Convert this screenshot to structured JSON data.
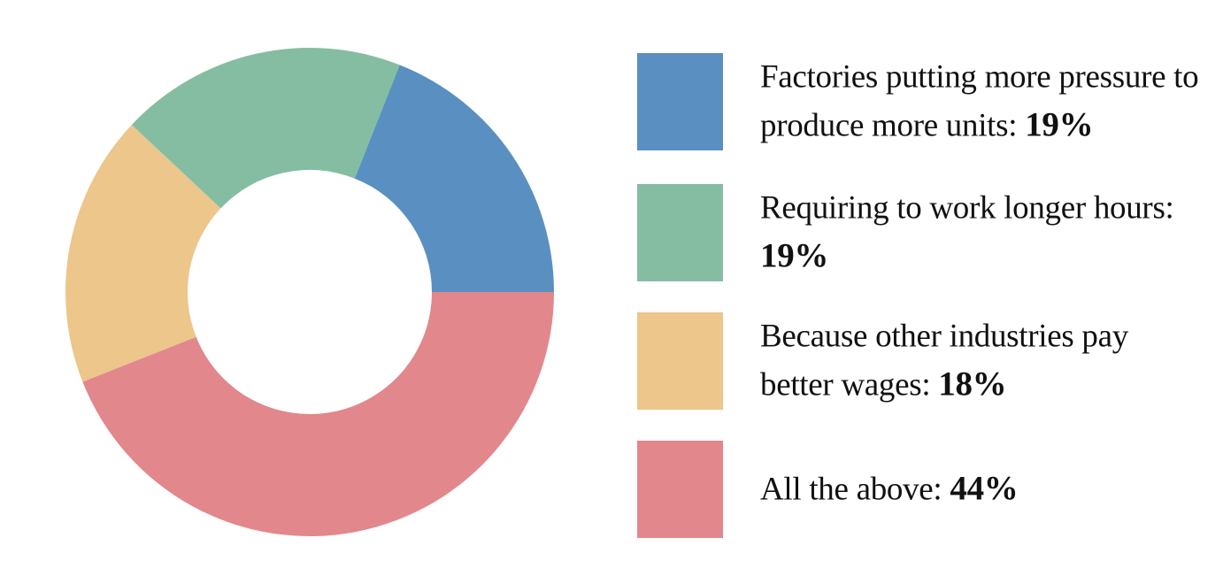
{
  "chart_data": {
    "type": "pie",
    "style": "donut",
    "title": "",
    "legend_position": "right",
    "categories": [
      "Factories putting more pressure to produce more units",
      "Requiring to work longer hours",
      "Because other industries pay better wages",
      "All the above"
    ],
    "values": [
      19,
      19,
      18,
      44
    ],
    "value_labels": [
      "19%",
      "19%",
      "18%",
      "44%"
    ],
    "colors": [
      "#5a8fc1",
      "#85bda3",
      "#ecc68a",
      "#e2878c"
    ]
  },
  "legend": {
    "items": [
      {
        "label": "Factories putting more pressure to produce more units:",
        "value": "19%"
      },
      {
        "label": "Requiring to work longer hours:",
        "value": "19%"
      },
      {
        "label": "Because other industries pay better wages:",
        "value": "18%"
      },
      {
        "label": "All the above:",
        "value": "44%"
      }
    ]
  }
}
